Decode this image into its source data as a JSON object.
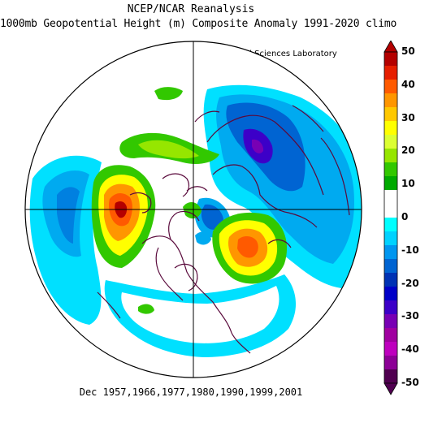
{
  "title": {
    "line1": "NCEP/NCAR Reanalysis",
    "line2": "1000mb Geopotential Height (m) Composite Anomaly 1991-2020 climo",
    "credit": "NOAA Physical Sciences Laboratory"
  },
  "caption": "Dec 1957,1966,1977,1980,1990,1999,2001",
  "colorbar": {
    "ticks": [
      "50",
      "40",
      "30",
      "20",
      "10",
      "0",
      "-10",
      "-20",
      "-30",
      "-40",
      "-50"
    ],
    "levels_top_to_bottom": [
      "#b40000",
      "#e61e00",
      "#ff5a00",
      "#ff9600",
      "#ffc800",
      "#ffff00",
      "#dcff32",
      "#96e600",
      "#32c800",
      "#00aa00",
      "#ffffff",
      "#ffffff",
      "#00ffff",
      "#00d2ff",
      "#0096f0",
      "#0064d2",
      "#0032b4",
      "#0000c8",
      "#3c00c8",
      "#7800b4",
      "#a000a0",
      "#be00be",
      "#8c0096",
      "#500050"
    ]
  },
  "map": {
    "projection": "north polar stereographic",
    "anomalies": [
      {
        "region": "North Pacific / Alaska",
        "kind": "positive",
        "peak_m": 50
      },
      {
        "region": "North Atlantic",
        "kind": "positive",
        "peak_m": 40
      },
      {
        "region": "Eurasia / Siberia",
        "kind": "negative",
        "peak_m": -30
      },
      {
        "region": "Labrador / Baffin",
        "kind": "negative",
        "peak_m": -20
      },
      {
        "region": "Central Pacific",
        "kind": "negative",
        "peak_m": -15
      },
      {
        "region": "Arctic Ocean",
        "kind": "positive",
        "peak_m": 15
      }
    ]
  }
}
